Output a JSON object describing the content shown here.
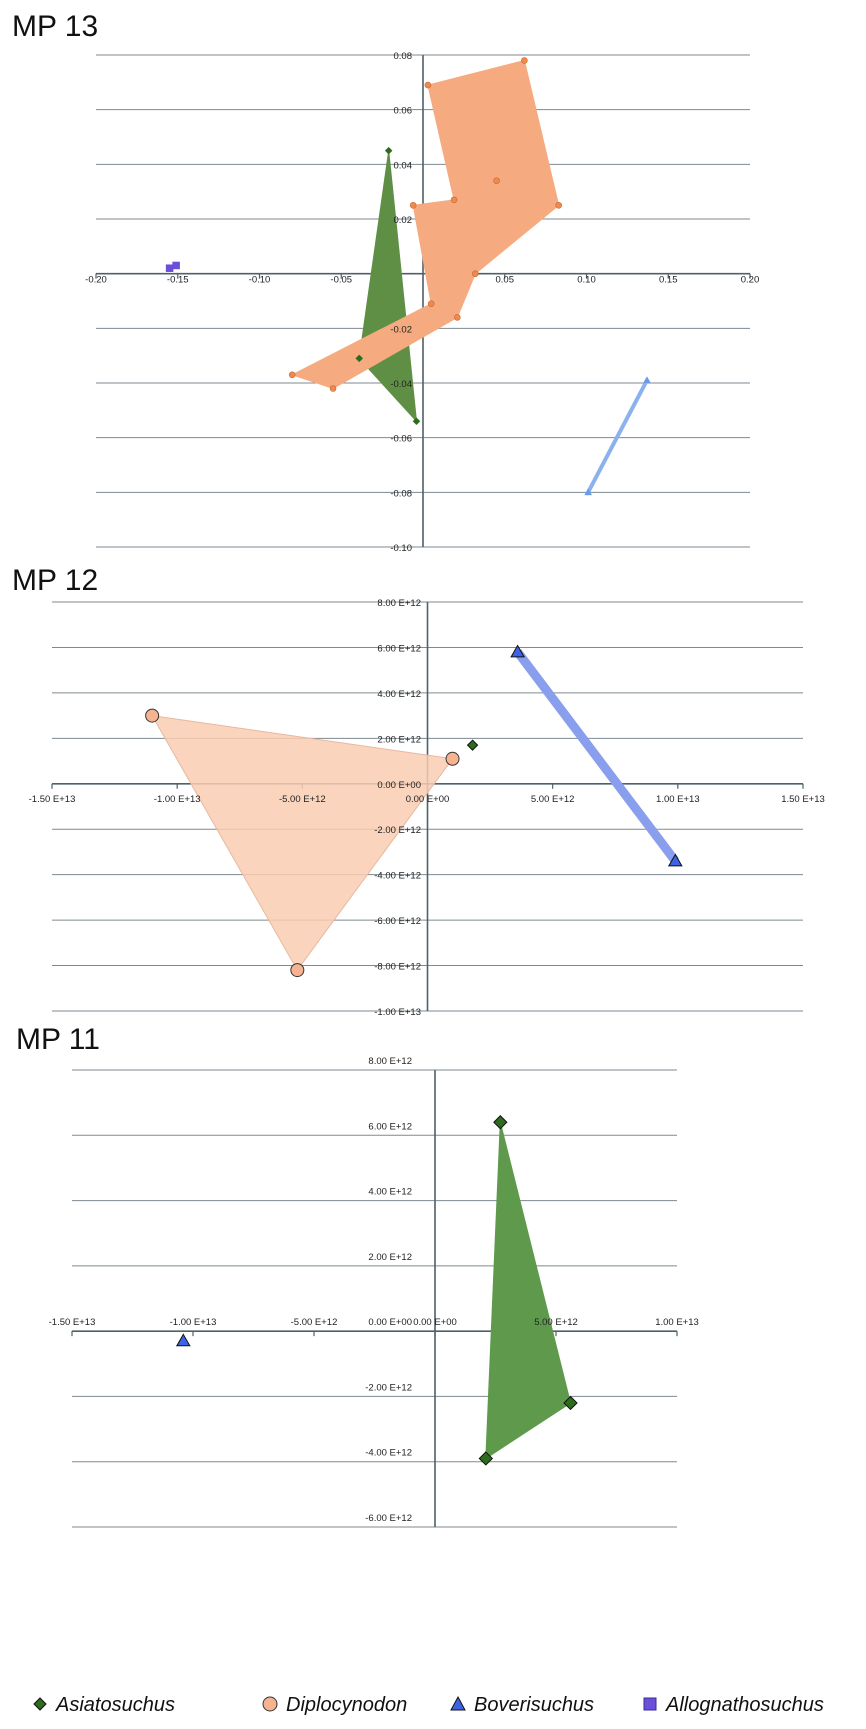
{
  "legend": {
    "items": [
      {
        "label": "Asiatosuchus",
        "shape": "diamond",
        "color": "#2e6b1c"
      },
      {
        "label": "Diplocynodon",
        "shape": "circle",
        "color": "#f3ae87"
      },
      {
        "label": "Boverisuchus",
        "shape": "triangle",
        "color": "#4a73e8"
      },
      {
        "label": "Allognathosuchus",
        "shape": "square",
        "color": "#6a4fd8"
      }
    ]
  },
  "chart_data": [
    {
      "type": "scatter",
      "title": "MP 13",
      "xlim": [
        -0.2,
        0.2
      ],
      "ylim": [
        -0.1,
        0.08
      ],
      "x_ticks": [
        -0.2,
        -0.15,
        -0.1,
        -0.05,
        0.05,
        0.1,
        0.15,
        0.2
      ],
      "x_tick_labels": [
        "-0.20",
        "-0.15",
        "-0.10",
        "-0.05",
        "0.05",
        "0.10",
        "0.15",
        "0.20"
      ],
      "y_ticks": [
        0.08,
        0.06,
        0.04,
        0.02,
        -0.02,
        -0.04,
        -0.06,
        -0.08,
        -0.1
      ],
      "y_tick_labels": [
        "0.08",
        "0.06",
        "0.04",
        "0.02",
        "-0.02",
        "-0.04",
        "-0.06",
        "-0.08",
        "-0.10"
      ],
      "grid": "horizontal",
      "series": [
        {
          "group": "Asiatosuchus",
          "points": [
            [
              -0.021,
              0.045
            ],
            [
              -0.039,
              -0.031
            ],
            [
              -0.004,
              -0.054
            ]
          ],
          "hull": [
            [
              -0.021,
              0.045
            ],
            [
              -0.039,
              -0.031
            ],
            [
              -0.004,
              -0.054
            ]
          ],
          "color": "#2e6b1c",
          "fill": "#5f8f44",
          "marker_size": "small"
        },
        {
          "group": "Diplocynodon",
          "points": [
            [
              0.003,
              0.069
            ],
            [
              0.062,
              0.078
            ],
            [
              0.045,
              0.034
            ],
            [
              0.083,
              0.025
            ],
            [
              0.019,
              0.027
            ],
            [
              -0.006,
              0.025
            ],
            [
              0.032,
              0.0
            ],
            [
              0.005,
              -0.011
            ],
            [
              0.021,
              -0.016
            ],
            [
              -0.08,
              -0.037
            ],
            [
              -0.055,
              -0.042
            ]
          ],
          "hull": [
            [
              0.003,
              0.069
            ],
            [
              0.062,
              0.078
            ],
            [
              0.083,
              0.025
            ],
            [
              0.032,
              0.0
            ],
            [
              0.021,
              -0.016
            ],
            [
              -0.055,
              -0.042
            ],
            [
              -0.08,
              -0.037
            ],
            [
              0.005,
              -0.011
            ],
            [
              -0.006,
              0.025
            ],
            [
              0.019,
              0.027
            ]
          ],
          "color": "#e8884f",
          "fill": "#f6aa80",
          "marker_size": "small"
        },
        {
          "group": "Boverisuchus",
          "points": [
            [
              0.137,
              -0.039
            ],
            [
              0.101,
              -0.08
            ]
          ],
          "hull": [
            [
              0.137,
              -0.039
            ],
            [
              0.101,
              -0.08
            ]
          ],
          "color": "#6a9be8",
          "fill": "#8cb2ee",
          "marker_size": "small"
        },
        {
          "group": "Allognathosuchus",
          "points": [
            [
              -0.155,
              0.002
            ],
            [
              -0.151,
              0.003
            ]
          ],
          "hull": [],
          "color": "#6a4fd8",
          "fill": "#6a4fd8",
          "marker_size": "small"
        }
      ]
    },
    {
      "type": "scatter",
      "title": "MP 12",
      "xlim": [
        -15000000000000,
        15000000000000
      ],
      "ylim": [
        -10000000000000,
        8000000000000
      ],
      "x_ticks": [
        -15000000000000,
        -10000000000000,
        -5000000000000,
        0,
        5000000000000,
        10000000000000,
        15000000000000
      ],
      "x_tick_labels": [
        "-1.50 E+13",
        "-1.00 E+13",
        "-5.00 E+12",
        "0.00 E+00",
        "5.00 E+12",
        "1.00 E+13",
        "1.50 E+13"
      ],
      "y_ticks": [
        8000000000000,
        6000000000000,
        4000000000000,
        2000000000000,
        0,
        -2000000000000,
        -4000000000000,
        -6000000000000,
        -8000000000000,
        -10000000000000
      ],
      "y_tick_labels": [
        "8.00 E+12",
        "6.00 E+12",
        "4.00 E+12",
        "2.00 E+12",
        "0.00 E+00",
        "-2.00 E+12",
        "-4.00 E+12",
        "-6.00 E+12",
        "-8.00 E+12",
        "-1.00 E+13"
      ],
      "grid": "horizontal",
      "series": [
        {
          "group": "Diplocynodon",
          "points": [
            [
              -11000000000000,
              3000000000000
            ],
            [
              1000000000000,
              1100000000000
            ],
            [
              -5200000000000,
              -8200000000000
            ]
          ],
          "hull": [
            [
              -11000000000000,
              3000000000000
            ],
            [
              1000000000000,
              1100000000000
            ],
            [
              -5200000000000,
              -8200000000000
            ]
          ],
          "color": "#f3ae87",
          "fill": "#f9cdb2",
          "marker_size": "large"
        },
        {
          "group": "Asiatosuchus",
          "points": [
            [
              1800000000000,
              1700000000000
            ]
          ],
          "hull": [],
          "color": "#2e6b1c",
          "fill": "#5f8f44",
          "marker_size": "medium"
        },
        {
          "group": "Boverisuchus",
          "points": [
            [
              3600000000000,
              5800000000000
            ],
            [
              9900000000000,
              -3400000000000
            ]
          ],
          "hull": [
            [
              3600000000000,
              5800000000000
            ],
            [
              9900000000000,
              -3400000000000
            ]
          ],
          "color": "#4a73e8",
          "fill": "#8a9eee",
          "marker_size": "large"
        }
      ]
    },
    {
      "type": "scatter",
      "title": "MP 11",
      "xlim": [
        -15000000000000,
        10000000000000
      ],
      "ylim": [
        -6000000000000,
        8000000000000
      ],
      "x_ticks": [
        -15000000000000,
        -10000000000000,
        -5000000000000,
        0,
        5000000000000,
        10000000000000
      ],
      "x_tick_labels": [
        "-1.50 E+13",
        "-1.00 E+13",
        "-5.00 E+12",
        "0.00 E+00",
        "5.00 E+12",
        "1.00 E+13"
      ],
      "y_ticks": [
        8000000000000,
        6000000000000,
        4000000000000,
        2000000000000,
        0,
        -2000000000000,
        -4000000000000,
        -6000000000000
      ],
      "y_tick_labels": [
        "8.00 E+12",
        "6.00 E+12",
        "4.00 E+12",
        "2.00 E+12",
        "0.00 E+00",
        "-2.00 E+12",
        "-4.00 E+12",
        "-6.00 E+12"
      ],
      "grid": "horizontal",
      "series": [
        {
          "group": "Asiatosuchus",
          "points": [
            [
              2700000000000,
              6400000000000
            ],
            [
              5600000000000,
              -2200000000000
            ],
            [
              2100000000000,
              -3900000000000
            ]
          ],
          "hull": [
            [
              2700000000000,
              6400000000000
            ],
            [
              5600000000000,
              -2200000000000
            ],
            [
              2100000000000,
              -3900000000000
            ]
          ],
          "color": "#2e6b1c",
          "fill": "#5f9a4c",
          "marker_size": "large"
        },
        {
          "group": "Boverisuchus",
          "points": [
            [
              -10400000000000,
              -300000000000
            ]
          ],
          "hull": [],
          "color": "#4a73e8",
          "fill": "#8a9eee",
          "marker_size": "large"
        }
      ]
    }
  ]
}
